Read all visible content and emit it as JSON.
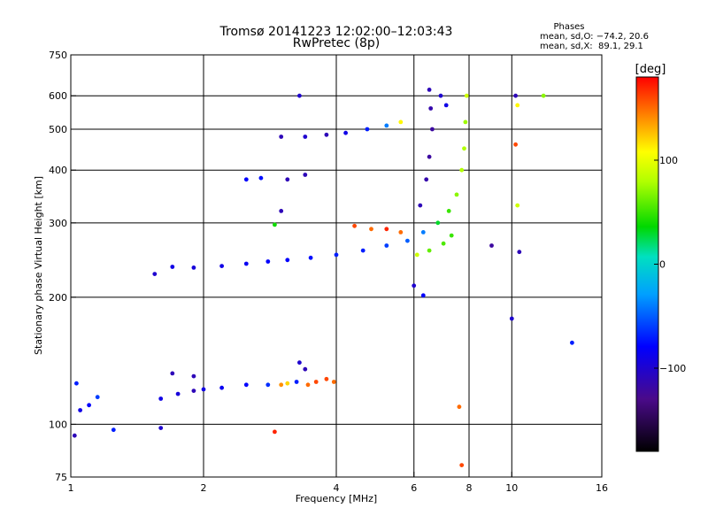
{
  "chart_data": {
    "type": "scatter",
    "title": "Tromsø 20141223 12:02:00–12:03:43",
    "subtitle": "RwPretec (8p)",
    "xlabel": "Frequency [MHz]",
    "ylabel": "Stationary phase Virtual Height [km]",
    "x_scale": "log",
    "y_scale": "log",
    "xlim": [
      1,
      16
    ],
    "ylim": [
      75,
      750
    ],
    "x_ticks": [
      1,
      2,
      4,
      6,
      8,
      10,
      16
    ],
    "x_tick_labels": [
      "1",
      "2",
      "4",
      "6",
      "8",
      "10",
      "16"
    ],
    "y_ticks": [
      75,
      100,
      200,
      300,
      400,
      500,
      600,
      750
    ],
    "y_tick_labels": [
      "75",
      "100",
      "200",
      "300",
      "400",
      "500",
      "600",
      "750"
    ],
    "grid": true,
    "stats": {
      "header": "Phases",
      "line_o": "mean, sd,O: −74.2, 20.6",
      "line_x": "mean, sd,X:  89.1, 29.1"
    },
    "colorbar": {
      "label": "[deg]",
      "range": [
        -180,
        180
      ],
      "ticks": [
        100,
        0,
        -100
      ],
      "tick_labels": [
        "100",
        "0",
        "−100"
      ]
    },
    "series": [
      {
        "points": [
          [
            1.02,
            94,
            -110
          ],
          [
            1.05,
            108,
            -90
          ],
          [
            1.1,
            111,
            -80
          ],
          [
            1.03,
            125,
            -70
          ],
          [
            1.15,
            116,
            -60
          ],
          [
            1.25,
            97,
            -70
          ],
          [
            1.6,
            98,
            -100
          ],
          [
            1.6,
            115,
            -90
          ],
          [
            1.75,
            118,
            -95
          ],
          [
            1.9,
            120,
            -110
          ],
          [
            2.0,
            121,
            -90
          ],
          [
            2.2,
            122,
            -85
          ],
          [
            2.5,
            124,
            -80
          ],
          [
            2.8,
            124,
            -65
          ],
          [
            3.0,
            124,
            140
          ],
          [
            3.1,
            125,
            120
          ],
          [
            3.25,
            126,
            -70
          ],
          [
            3.45,
            124,
            150
          ],
          [
            3.6,
            126,
            160
          ],
          [
            3.8,
            128,
            160
          ],
          [
            3.95,
            126,
            150
          ],
          [
            3.4,
            135,
            -110
          ],
          [
            3.3,
            140,
            -100
          ],
          [
            1.9,
            130,
            -110
          ],
          [
            1.7,
            132,
            -110
          ],
          [
            1.55,
            227,
            -100
          ],
          [
            1.7,
            236,
            -90
          ],
          [
            1.9,
            235,
            -95
          ],
          [
            2.2,
            237,
            -90
          ],
          [
            2.5,
            240,
            -85
          ],
          [
            2.8,
            243,
            -80
          ],
          [
            3.1,
            245,
            -80
          ],
          [
            3.5,
            248,
            -75
          ],
          [
            4.0,
            252,
            -70
          ],
          [
            4.6,
            258,
            -70
          ],
          [
            5.2,
            265,
            -60
          ],
          [
            5.8,
            272,
            -50
          ],
          [
            6.3,
            285,
            -40
          ],
          [
            6.8,
            300,
            30
          ],
          [
            7.2,
            320,
            50
          ],
          [
            7.5,
            350,
            70
          ],
          [
            7.7,
            400,
            80
          ],
          [
            7.8,
            450,
            80
          ],
          [
            7.85,
            520,
            75
          ],
          [
            7.9,
            600,
            90
          ],
          [
            4.4,
            295,
            160
          ],
          [
            4.8,
            290,
            150
          ],
          [
            5.2,
            290,
            170
          ],
          [
            5.6,
            285,
            150
          ],
          [
            6.1,
            252,
            90
          ],
          [
            6.5,
            258,
            60
          ],
          [
            7.0,
            268,
            55
          ],
          [
            7.3,
            280,
            50
          ],
          [
            3.0,
            480,
            -110
          ],
          [
            3.4,
            480,
            -100
          ],
          [
            3.8,
            485,
            -110
          ],
          [
            4.2,
            490,
            -90
          ],
          [
            4.7,
            500,
            -70
          ],
          [
            5.2,
            510,
            -40
          ],
          [
            5.6,
            520,
            110
          ],
          [
            3.3,
            600,
            -100
          ],
          [
            3.0,
            320,
            -110
          ],
          [
            3.1,
            380,
            -110
          ],
          [
            3.4,
            390,
            -110
          ],
          [
            2.5,
            380,
            -80
          ],
          [
            2.7,
            383,
            -75
          ],
          [
            6.2,
            330,
            -110
          ],
          [
            6.4,
            380,
            -115
          ],
          [
            6.5,
            430,
            -120
          ],
          [
            6.6,
            500,
            -120
          ],
          [
            6.55,
            560,
            -115
          ],
          [
            6.5,
            620,
            -110
          ],
          [
            6.9,
            600,
            -100
          ],
          [
            7.1,
            570,
            -90
          ],
          [
            6.0,
            213,
            -100
          ],
          [
            6.3,
            202,
            -80
          ],
          [
            10.2,
            600,
            -110
          ],
          [
            10.3,
            570,
            110
          ],
          [
            10.2,
            460,
            160
          ],
          [
            10.3,
            330,
            90
          ],
          [
            10.4,
            256,
            -110
          ],
          [
            9.0,
            265,
            -120
          ],
          [
            10.0,
            178,
            -100
          ],
          [
            13.7,
            156,
            -70
          ],
          [
            11.8,
            600,
            70
          ],
          [
            7.6,
            110,
            150
          ],
          [
            7.7,
            80,
            160
          ],
          [
            2.9,
            96,
            170
          ],
          [
            2.9,
            297,
            40
          ]
        ]
      }
    ]
  }
}
